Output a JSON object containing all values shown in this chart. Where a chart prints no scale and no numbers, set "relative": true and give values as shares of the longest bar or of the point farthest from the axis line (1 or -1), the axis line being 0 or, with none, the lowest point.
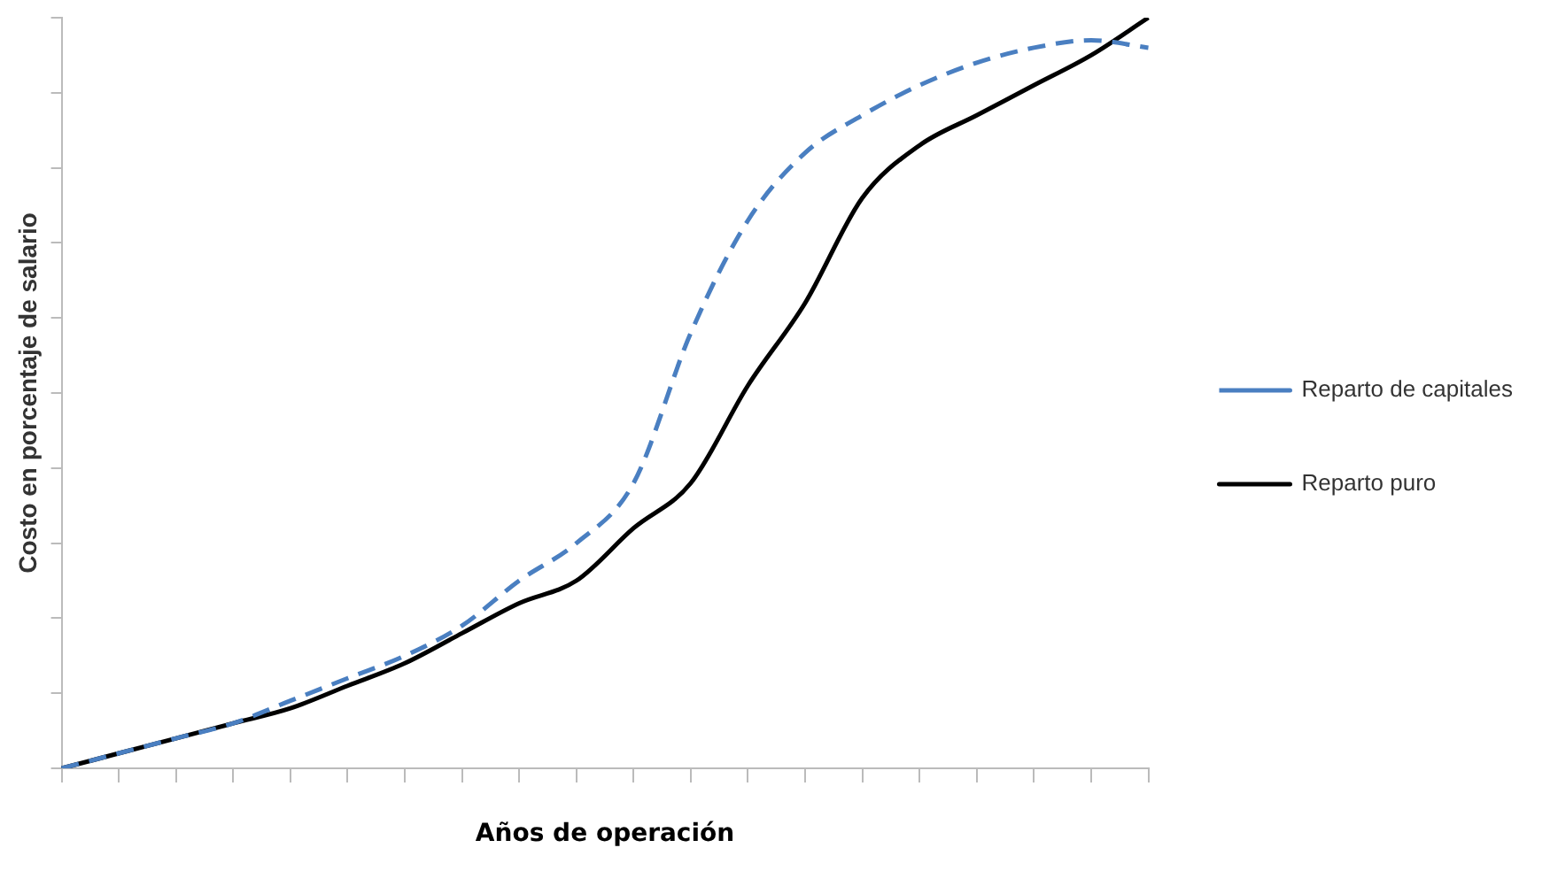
{
  "chart_data": {
    "type": "line",
    "relative": true,
    "xlabel": "Años de operación",
    "ylabel": "Costo en porcentaje de salario",
    "categories": [
      null,
      null,
      null,
      null,
      null,
      null,
      null,
      null,
      null,
      null,
      null,
      null,
      null,
      null,
      null,
      null,
      null,
      null,
      null,
      null
    ],
    "series": [
      {
        "name": "Reparto de capitales",
        "color": "#4a7fc1",
        "line_style": "dashed",
        "values": [
          0,
          0.02,
          0.04,
          0.06,
          0.09,
          0.12,
          0.15,
          0.19,
          0.25,
          0.3,
          0.38,
          0.58,
          0.73,
          0.82,
          0.87,
          0.91,
          0.94,
          0.96,
          0.97,
          0.96
        ]
      },
      {
        "name": "Reparto puro",
        "color": "#000000",
        "line_style": "solid",
        "values": [
          0,
          0.02,
          0.04,
          0.06,
          0.08,
          0.11,
          0.14,
          0.18,
          0.22,
          0.25,
          0.32,
          0.38,
          0.51,
          0.62,
          0.76,
          0.83,
          0.87,
          0.91,
          0.95,
          1
        ]
      }
    ],
    "legend": "right",
    "grid": false,
    "marker": "none"
  }
}
